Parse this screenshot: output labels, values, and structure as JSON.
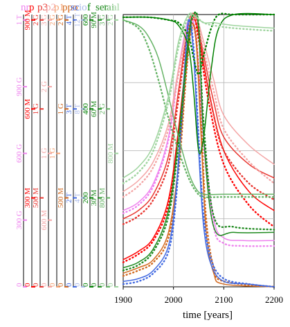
{
  "chart_data": {
    "type": "line",
    "xlabel": "time [years]",
    "xlim": [
      1900,
      2200
    ],
    "xticks": [
      "1900",
      "2000",
      "2100",
      "2200"
    ],
    "grid": true,
    "axes": [
      {
        "name": "nr",
        "color": "#ee82ee",
        "labels": [
          "0",
          "300 G",
          "600 G",
          "900 G",
          "1 T"
        ]
      },
      {
        "name": "p",
        "color": "#ff0000",
        "labels": [
          "0",
          "300 M",
          "600 M",
          "900 M"
        ]
      },
      {
        "name": "p3",
        "color": "#e8352f",
        "labels": [
          "0",
          "500 M",
          "1 G",
          "2 G"
        ]
      },
      {
        "name": "p2",
        "color": "#f4a5a5",
        "labels": [
          "0",
          "600 M",
          "1 G",
          "2 G",
          "3 G"
        ]
      },
      {
        "name": "p1",
        "color": "#f5a070",
        "labels": [
          "0",
          "1 G",
          "2 G"
        ]
      },
      {
        "name": "ppo",
        "color": "#d2691e",
        "labels": [
          "0",
          "500 M",
          "1 G",
          "2 G"
        ]
      },
      {
        "name": "sc",
        "color": "#4169e1",
        "labels": [
          "0",
          "2 T",
          "3 T",
          "4 T"
        ]
      },
      {
        "name": "io",
        "color": "#a9b8e8",
        "labels": [
          "0",
          "4 T",
          "8 T",
          "12 T"
        ]
      },
      {
        "name": "f",
        "color": "#008000",
        "labels": [
          "0",
          "200",
          "400",
          "600"
        ]
      },
      {
        "name": "ser",
        "color": "#1f8a1f",
        "labels": [
          "0",
          "30 M",
          "60 M",
          "90 M"
        ]
      },
      {
        "name": "tai",
        "color": "#66b366",
        "labels": [
          "0",
          "800 M",
          "2 G",
          "3 G"
        ]
      },
      {
        "name": "al",
        "color": "#9ed49e",
        "labels": [
          "0",
          "800 M",
          "2 G"
        ]
      }
    ],
    "series": [
      {
        "color": "#ee82ee",
        "style": "solid",
        "x": [
          1900,
          1930,
          1960,
          1990,
          2010,
          2030,
          2045,
          2060,
          2080,
          2100,
          2140,
          2200
        ],
        "y": [
          0.28,
          0.31,
          0.38,
          0.55,
          0.8,
          0.98,
          0.92,
          0.55,
          0.25,
          0.18,
          0.17,
          0.17
        ]
      },
      {
        "color": "#ee82ee",
        "style": "dotted",
        "x": [
          1900,
          1930,
          1960,
          1990,
          2010,
          2030,
          2045,
          2060,
          2080,
          2100,
          2140,
          2200
        ],
        "y": [
          0.27,
          0.3,
          0.37,
          0.54,
          0.79,
          0.97,
          0.9,
          0.52,
          0.22,
          0.16,
          0.15,
          0.15
        ]
      },
      {
        "color": "#ff0000",
        "style": "solid",
        "x": [
          1900,
          1930,
          1960,
          1990,
          2010,
          2030,
          2040,
          2050,
          2070,
          2100,
          2150,
          2200
        ],
        "y": [
          0.1,
          0.13,
          0.18,
          0.32,
          0.58,
          0.92,
          1.0,
          0.93,
          0.72,
          0.5,
          0.35,
          0.28
        ]
      },
      {
        "color": "#ff0000",
        "style": "dotted",
        "x": [
          1900,
          1930,
          1960,
          1990,
          2010,
          2030,
          2040,
          2050,
          2070,
          2100,
          2150,
          2200
        ],
        "y": [
          0.09,
          0.12,
          0.17,
          0.3,
          0.55,
          0.9,
          0.99,
          0.91,
          0.68,
          0.45,
          0.3,
          0.22
        ]
      },
      {
        "color": "#e8352f",
        "style": "solid",
        "x": [
          1900,
          1930,
          1960,
          1990,
          2010,
          2030,
          2045,
          2060,
          2080,
          2100,
          2150,
          2200
        ],
        "y": [
          0.25,
          0.28,
          0.34,
          0.48,
          0.72,
          0.97,
          0.99,
          0.85,
          0.68,
          0.55,
          0.45,
          0.4
        ]
      },
      {
        "color": "#e8352f",
        "style": "dotted",
        "x": [
          1900,
          1930,
          1960,
          1990,
          2010,
          2030,
          2045,
          2060,
          2080,
          2100,
          2150,
          2200
        ],
        "y": [
          0.23,
          0.26,
          0.32,
          0.45,
          0.69,
          0.95,
          0.97,
          0.82,
          0.63,
          0.5,
          0.38,
          0.32
        ]
      },
      {
        "color": "#f4a5a5",
        "style": "solid",
        "x": [
          1900,
          1930,
          1960,
          1990,
          2010,
          2030,
          2045,
          2060,
          2080,
          2100,
          2150,
          2200
        ],
        "y": [
          0.35,
          0.39,
          0.46,
          0.6,
          0.8,
          0.97,
          0.99,
          0.9,
          0.76,
          0.63,
          0.52,
          0.45
        ]
      },
      {
        "color": "#f4a5a5",
        "style": "dotted",
        "x": [
          1900,
          1930,
          1960,
          1990,
          2010,
          2030,
          2045,
          2060,
          2080,
          2100,
          2150,
          2200
        ],
        "y": [
          0.33,
          0.37,
          0.44,
          0.58,
          0.78,
          0.96,
          0.98,
          0.87,
          0.72,
          0.58,
          0.46,
          0.38
        ]
      },
      {
        "color": "#d2691e",
        "style": "solid",
        "x": [
          1900,
          1930,
          1960,
          1990,
          2010,
          2025,
          2035,
          2045,
          2055,
          2065,
          2080,
          2100,
          2200
        ],
        "y": [
          0.05,
          0.07,
          0.1,
          0.2,
          0.45,
          0.8,
          0.96,
          0.9,
          0.55,
          0.2,
          0.05,
          0.01,
          0.0
        ]
      },
      {
        "color": "#d2691e",
        "style": "dotted",
        "x": [
          1900,
          1930,
          1960,
          1990,
          2010,
          2025,
          2035,
          2045,
          2055,
          2065,
          2080,
          2100,
          2200
        ],
        "y": [
          0.04,
          0.06,
          0.09,
          0.18,
          0.42,
          0.77,
          0.94,
          0.92,
          0.6,
          0.25,
          0.07,
          0.02,
          0.0
        ]
      },
      {
        "color": "#4169e1",
        "style": "solid",
        "x": [
          1900,
          1930,
          1960,
          1990,
          2005,
          2020,
          2030,
          2040,
          2050,
          2060,
          2075,
          2100,
          2150,
          2200
        ],
        "y": [
          0.02,
          0.03,
          0.06,
          0.15,
          0.35,
          0.75,
          0.98,
          0.85,
          0.5,
          0.22,
          0.08,
          0.02,
          0.01,
          0.0
        ]
      },
      {
        "color": "#4169e1",
        "style": "dotted",
        "x": [
          1900,
          1930,
          1960,
          1990,
          2005,
          2020,
          2030,
          2040,
          2050,
          2060,
          2075,
          2100,
          2150,
          2200
        ],
        "y": [
          0.01,
          0.02,
          0.05,
          0.13,
          0.32,
          0.72,
          0.97,
          0.88,
          0.55,
          0.26,
          0.1,
          0.03,
          0.01,
          0.0
        ]
      },
      {
        "color": "#008000",
        "style": "solid",
        "x": [
          1900,
          1950,
          1990,
          2010,
          2030,
          2040,
          2050,
          2060,
          2075,
          2090,
          2120,
          2200
        ],
        "y": [
          0.99,
          0.99,
          0.98,
          0.96,
          0.88,
          0.72,
          0.5,
          0.55,
          0.8,
          0.95,
          1.0,
          1.0
        ]
      },
      {
        "color": "#008000",
        "style": "dotted",
        "x": [
          1900,
          1950,
          1990,
          2010,
          2030,
          2040,
          2050,
          2060,
          2075,
          2090,
          2120,
          2200
        ],
        "y": [
          0.99,
          0.99,
          0.98,
          0.97,
          0.92,
          0.84,
          0.78,
          0.85,
          0.95,
          1.0,
          1.0,
          1.0
        ]
      },
      {
        "color": "#1f8a1f",
        "style": "solid",
        "x": [
          1900,
          1930,
          1960,
          1990,
          2010,
          2030,
          2040,
          2050,
          2060,
          2080,
          2120,
          2200
        ],
        "y": [
          0.07,
          0.09,
          0.14,
          0.28,
          0.55,
          0.92,
          1.0,
          0.95,
          0.55,
          0.22,
          0.2,
          0.2
        ]
      },
      {
        "color": "#1f8a1f",
        "style": "dotted",
        "x": [
          1900,
          1930,
          1960,
          1990,
          2010,
          2030,
          2040,
          2050,
          2060,
          2080,
          2120,
          2200
        ],
        "y": [
          0.06,
          0.08,
          0.13,
          0.26,
          0.52,
          0.9,
          1.0,
          0.96,
          0.6,
          0.26,
          0.22,
          0.21
        ]
      },
      {
        "color": "#66b366",
        "style": "solid",
        "x": [
          1900,
          1930,
          1950,
          1970,
          1990,
          2010,
          2030,
          2045,
          2060,
          2100,
          2200
        ],
        "y": [
          0.98,
          0.96,
          0.92,
          0.84,
          0.7,
          0.55,
          0.42,
          0.36,
          0.34,
          0.34,
          0.34
        ]
      },
      {
        "color": "#66b366",
        "style": "dotted",
        "x": [
          1900,
          1930,
          1950,
          1970,
          1990,
          2010,
          2030,
          2045,
          2060,
          2100,
          2200
        ],
        "y": [
          0.98,
          0.95,
          0.88,
          0.76,
          0.62,
          0.5,
          0.4,
          0.35,
          0.33,
          0.33,
          0.33
        ]
      },
      {
        "color": "#9ed49e",
        "style": "solid",
        "x": [
          1900,
          1930,
          1960,
          1990,
          2010,
          2030,
          2045,
          2060,
          2080,
          2120,
          2200
        ],
        "y": [
          0.4,
          0.44,
          0.52,
          0.7,
          0.9,
          1.0,
          0.99,
          0.97,
          0.97,
          0.96,
          0.95
        ]
      },
      {
        "color": "#9ed49e",
        "style": "dotted",
        "x": [
          1900,
          1930,
          1960,
          1990,
          2010,
          2030,
          2045,
          2060,
          2080,
          2120,
          2200
        ],
        "y": [
          0.38,
          0.42,
          0.5,
          0.68,
          0.88,
          0.99,
          0.99,
          0.97,
          0.96,
          0.95,
          0.94
        ]
      }
    ]
  }
}
